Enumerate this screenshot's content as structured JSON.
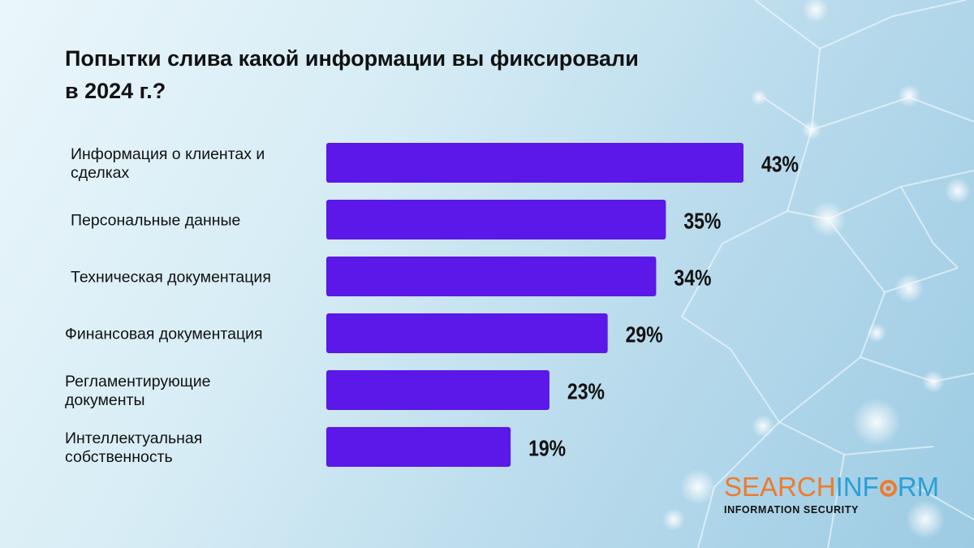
{
  "chart_data": {
    "type": "bar",
    "orientation": "horizontal",
    "title": "Попытки слива какой информации вы фиксировали в 2024 г.?",
    "categories": [
      [
        "Информация о клиентах и",
        "сделках"
      ],
      [
        "Персональные данные"
      ],
      [
        "Техническая документация"
      ],
      [
        "Финансовая документация"
      ],
      [
        "Регламентирующие",
        "документы"
      ],
      [
        "Интеллектуальная",
        "собственность"
      ]
    ],
    "values": [
      43,
      35,
      34,
      29,
      23,
      19
    ],
    "value_labels": [
      "43%",
      "35%",
      "34%",
      "29%",
      "23%",
      "19%"
    ],
    "xlim": [
      0,
      43
    ],
    "bar_color": "#5b18e8",
    "grid": false,
    "legend": "none"
  },
  "title_lines": [
    "Попытки слива какой информации вы фиксировали",
    "в 2024 г.?"
  ],
  "logo": {
    "part1": "SEARCH",
    "part2": "INF",
    "part3": "RM",
    "tagline": "INFORMATION SECURITY",
    "color_primary": "#f07a2c",
    "color_secondary": "#2a9fd6"
  }
}
